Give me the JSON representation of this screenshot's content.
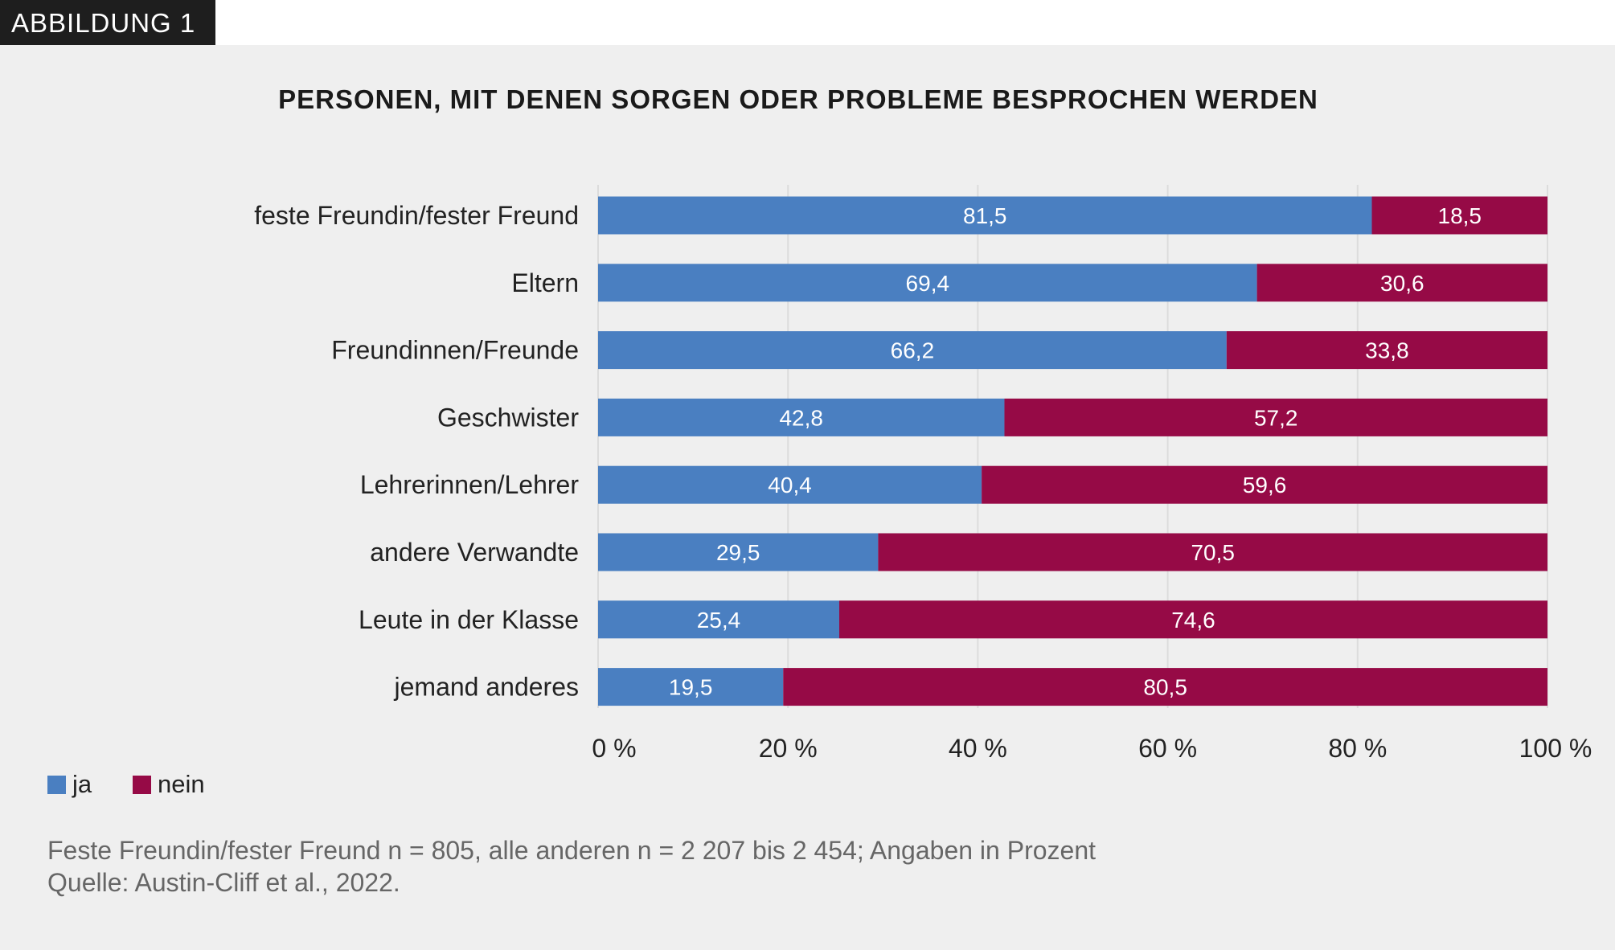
{
  "figure_label": "ABBILDUNG 1",
  "chart_data": {
    "type": "bar",
    "orientation": "horizontal",
    "stacked": true,
    "title": "PERSONEN, MIT DENEN SORGEN ODER PROBLEME BESPROCHEN WERDEN",
    "categories": [
      "feste Freundin/fester Freund",
      "Eltern",
      "Freundinnen/Freunde",
      "Geschwister",
      "Lehrerinnen/Lehrer",
      "andere Verwandte",
      "Leute in der Klasse",
      "jemand anderes"
    ],
    "series": [
      {
        "name": "ja",
        "color": "#4a7fc1",
        "values": [
          81.5,
          69.4,
          66.2,
          42.8,
          40.4,
          29.5,
          25.4,
          19.5
        ],
        "labels": [
          "81,5",
          "69,4",
          "66,2",
          "42,8",
          "40,4",
          "29,5",
          "25,4",
          "19,5"
        ]
      },
      {
        "name": "nein",
        "color": "#960a46",
        "values": [
          18.5,
          30.6,
          33.8,
          57.2,
          59.6,
          70.5,
          74.6,
          80.5
        ],
        "labels": [
          "18,5",
          "30,6",
          "33,8",
          "57,2",
          "59,6",
          "70,5",
          "74,6",
          "80,5"
        ]
      }
    ],
    "xlim": [
      0,
      100
    ],
    "xticks": [
      "0 %",
      "20 %",
      "40 %",
      "60 %",
      "80 %",
      "100 %"
    ],
    "grid": true,
    "legend_position": "bottom-left"
  },
  "footnote": "Feste Freundin/fester Freund n = 805, alle anderen n = 2 207 bis 2 454; Angaben in Prozent",
  "source": "Quelle: Austin-Cliff et al., 2022."
}
